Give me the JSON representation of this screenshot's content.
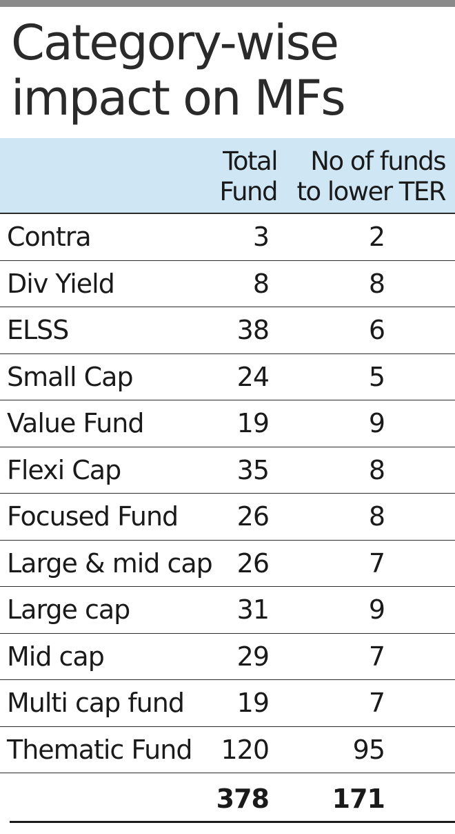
{
  "title_lines": [
    "Category-wise",
    "impact on MFs"
  ],
  "columns": {
    "total": [
      "Total",
      "Fund"
    ],
    "lower": [
      "No of funds",
      "to lower TER"
    ]
  },
  "colors": {
    "header_bg": "#cfe6f5",
    "top_bar": "#8a8a8a",
    "rule": "#2a2a2a"
  },
  "chart_data": {
    "type": "table",
    "title": "Category-wise impact on MFs",
    "columns": [
      "",
      "Total Fund",
      "No of funds to lower TER"
    ],
    "rows": [
      {
        "category": "Contra",
        "total": "3",
        "lower": "2"
      },
      {
        "category": "Div Yield",
        "total": "8",
        "lower": "8"
      },
      {
        "category": "ELSS",
        "total": "38",
        "lower": "6"
      },
      {
        "category": "Small Cap",
        "total": "24",
        "lower": "5"
      },
      {
        "category": "Value Fund",
        "total": "19",
        "lower": "9"
      },
      {
        "category": "Flexi Cap",
        "total": "35",
        "lower": "8"
      },
      {
        "category": "Focused Fund",
        "total": "26",
        "lower": "8"
      },
      {
        "category": "Large & mid cap",
        "total": "26",
        "lower": "7"
      },
      {
        "category": "Large cap",
        "total": "31",
        "lower": "9"
      },
      {
        "category": "Mid cap",
        "total": "29",
        "lower": "7"
      },
      {
        "category": "Multi cap fund",
        "total": "19",
        "lower": "7"
      },
      {
        "category": "Thematic Fund",
        "total": "120",
        "lower": "95"
      }
    ],
    "totals": {
      "total": "378",
      "lower": "171"
    }
  }
}
